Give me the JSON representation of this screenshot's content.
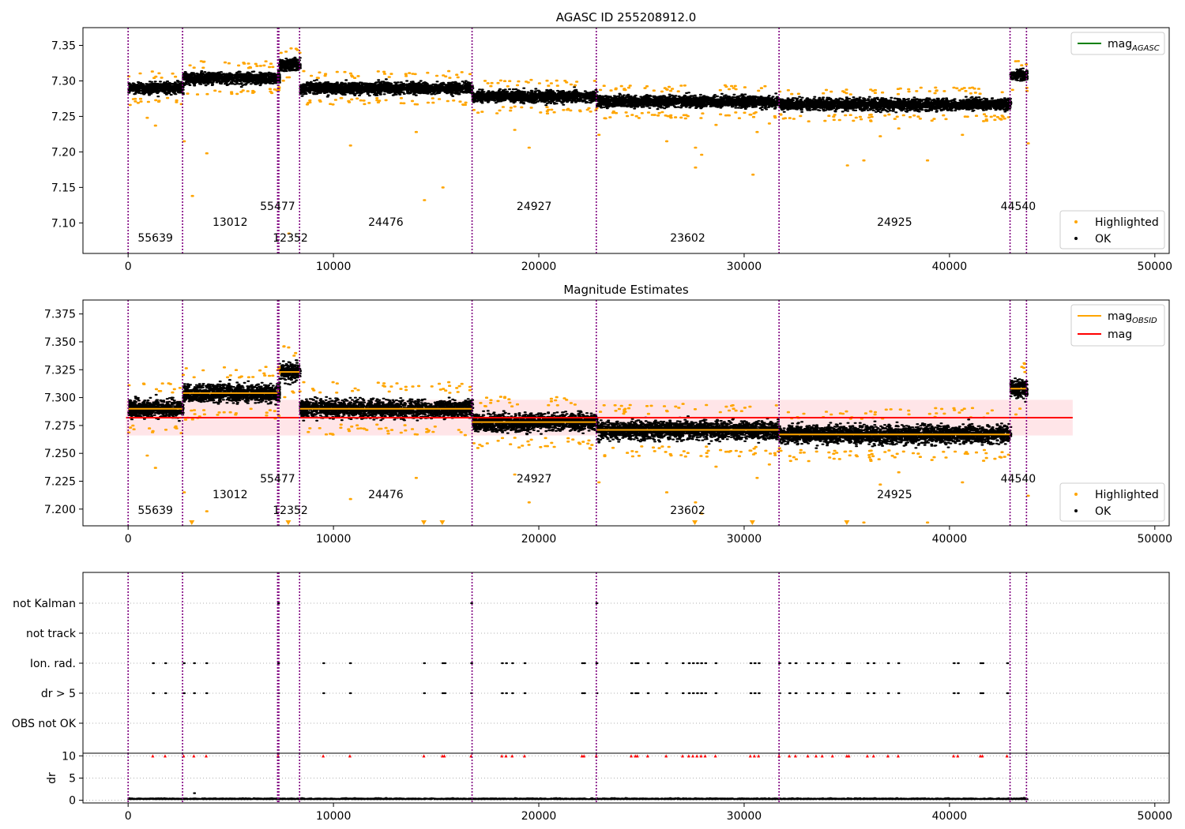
{
  "chart_data": [
    {
      "id": "p1",
      "type": "scatter",
      "title": "AGASC ID 255208912.0",
      "xlim": [
        -2200,
        50700
      ],
      "ylim": [
        7.057,
        7.375
      ],
      "xticks": [
        0,
        10000,
        20000,
        30000,
        40000,
        50000
      ],
      "yticks": [
        7.1,
        7.15,
        7.2,
        7.25,
        7.3,
        7.35
      ],
      "ytick_labels": [
        "7.10",
        "7.15",
        "7.20",
        "7.25",
        "7.30",
        "7.35"
      ],
      "legend_top": {
        "position": "top-right",
        "entries": [
          {
            "label": "mag",
            "subscript": "AGASC",
            "color": "#008000"
          }
        ]
      },
      "legend_bottom": {
        "position": "bottom-right",
        "entries": [
          {
            "label": "Highlighted",
            "color": "#FFA500"
          },
          {
            "label": "OK",
            "color": "#000000"
          }
        ]
      }
    },
    {
      "id": "p2",
      "type": "scatter",
      "title": "Magnitude Estimates",
      "xlim": [
        -2200,
        50700
      ],
      "ylim": [
        7.185,
        7.3875
      ],
      "xticks": [
        0,
        10000,
        20000,
        30000,
        40000,
        50000
      ],
      "yticks": [
        7.2,
        7.225,
        7.25,
        7.275,
        7.3,
        7.325,
        7.35,
        7.375
      ],
      "ytick_labels": [
        "7.200",
        "7.225",
        "7.250",
        "7.275",
        "7.300",
        "7.325",
        "7.350",
        "7.375"
      ],
      "mag": 7.282,
      "mag_band": [
        7.266,
        7.298
      ],
      "mag_band_x": [
        -100,
        46000
      ],
      "legend_top": {
        "position": "top-right",
        "entries": [
          {
            "label": "mag",
            "subscript": "OBSID",
            "color": "#FFA500"
          },
          {
            "label": "mag",
            "subscript": "",
            "color": "#FF0000"
          }
        ]
      },
      "legend_bottom": {
        "position": "bottom-right",
        "entries": [
          {
            "label": "Highlighted",
            "color": "#FFA500"
          },
          {
            "label": "OK",
            "color": "#000000"
          }
        ]
      }
    },
    {
      "id": "p3",
      "type": "scatter",
      "title": "",
      "xlim": [
        -2200,
        50700
      ],
      "categories": [
        "not Kalman",
        "not track",
        "Ion. rad.",
        "dr > 5",
        "OBS not OK"
      ],
      "flag_x": [
        1200,
        1800,
        2700,
        3200,
        3800,
        7300,
        9500,
        10800,
        14400,
        15300,
        15400,
        16700,
        18200,
        18400,
        18700,
        19300,
        22100,
        22200,
        22800,
        24500,
        24700,
        24800,
        25300,
        26200,
        27000,
        27300,
        27500,
        27700,
        27900,
        28100,
        28600,
        30300,
        30500,
        30700,
        31700,
        32200,
        32500,
        33100,
        33500,
        33800,
        34300,
        35000,
        35100,
        36000,
        36300,
        37000,
        37500,
        40200,
        40400,
        41500,
        41600,
        42800
      ],
      "kalman_x": [
        7300,
        16700,
        22800
      ]
    },
    {
      "id": "p4",
      "type": "scatter",
      "ylabel": "dr",
      "xlim": [
        -2200,
        50700
      ],
      "ylim": [
        -0.6,
        10.6
      ],
      "xticks": [
        0,
        10000,
        20000,
        30000,
        40000,
        50000
      ],
      "yticks": [
        0,
        5,
        10
      ],
      "ytick_labels": [
        "0",
        "5",
        "10"
      ],
      "red_x": [
        1200,
        1800,
        2700,
        3200,
        3800,
        7300,
        9500,
        10800,
        14400,
        15300,
        15400,
        16700,
        18200,
        18400,
        18700,
        19300,
        22100,
        22200,
        22800,
        24500,
        24700,
        24800,
        25300,
        26200,
        27000,
        27300,
        27500,
        27700,
        27900,
        28100,
        28600,
        30300,
        30500,
        30700,
        31700,
        32200,
        32500,
        33100,
        33500,
        33800,
        34300,
        35000,
        35100,
        36000,
        36300,
        37000,
        37500,
        40200,
        40400,
        41500,
        41600,
        42800
      ]
    }
  ],
  "obsids": [
    {
      "label": "55639",
      "start": 0,
      "end": 2650,
      "mean": 7.29,
      "tier": 0
    },
    {
      "label": "13012",
      "start": 2650,
      "end": 7280,
      "mean": 7.304,
      "tier": 1
    },
    {
      "label": "55477",
      "start": 7280,
      "end": 7340,
      "mean": 7.306,
      "tier": 2
    },
    {
      "label": "12352",
      "start": 7340,
      "end": 8350,
      "mean": 7.323,
      "tier": 0
    },
    {
      "label": "24476",
      "start": 8350,
      "end": 16750,
      "mean": 7.29,
      "tier": 1
    },
    {
      "label": "24927",
      "start": 16750,
      "end": 22800,
      "mean": 7.278,
      "tier": 2
    },
    {
      "label": "23602",
      "start": 22800,
      "end": 31700,
      "mean": 7.271,
      "tier": 0
    },
    {
      "label": "24925",
      "start": 31700,
      "end": 42950,
      "mean": 7.267,
      "tier": 1
    },
    {
      "label": "44540",
      "start": 42950,
      "end": 43750,
      "mean": 7.308,
      "tier": 2
    }
  ],
  "boundaries": [
    0,
    2650,
    7280,
    7340,
    8350,
    16750,
    22800,
    31700,
    42950,
    43750
  ],
  "colors": {
    "ok": "#000000",
    "highlighted": "#FFA500",
    "mag": "#FF0000",
    "mag_band": "#FFDCE0",
    "mag_obsid": "#FFA500",
    "mag_agasc": "#008000",
    "boundary": "#800080",
    "dr_flag": "#FF0000",
    "grid": "#B0B0B0"
  }
}
